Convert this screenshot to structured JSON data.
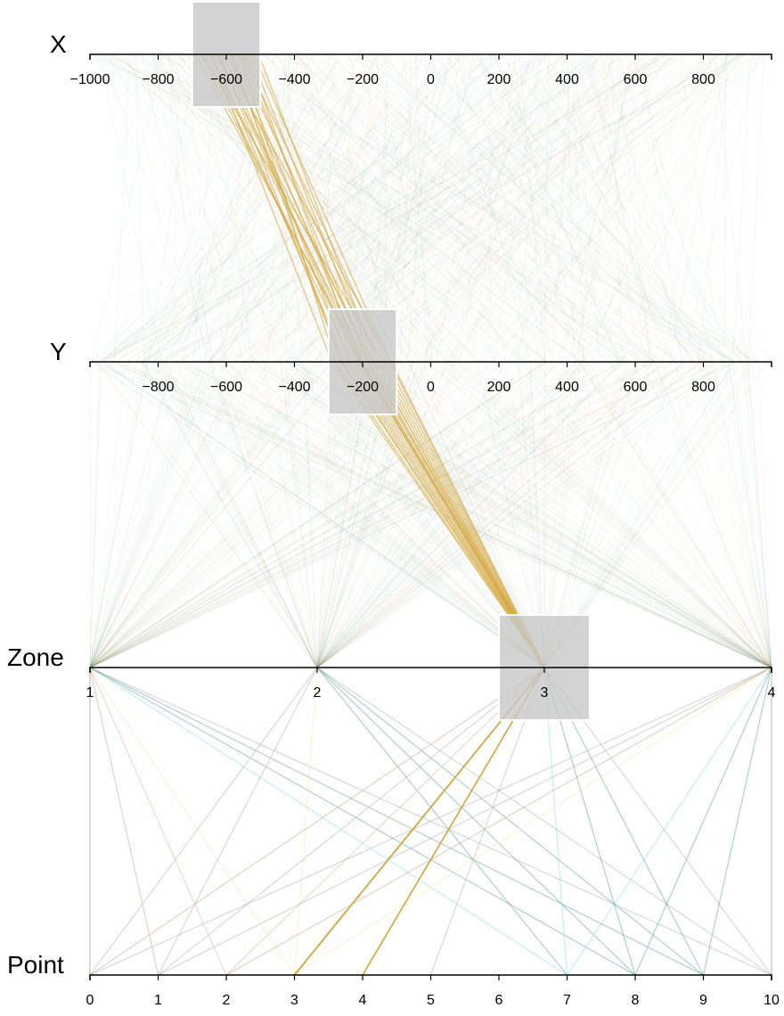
{
  "chart_data": {
    "type": "parallel-coordinates",
    "axes": [
      {
        "id": "x",
        "title": "X",
        "ticks": [
          -1000,
          -800,
          -600,
          -400,
          -200,
          0,
          200,
          400,
          600,
          800
        ],
        "range": [
          -1000,
          1000
        ],
        "brush": [
          -700,
          -500
        ]
      },
      {
        "id": "y",
        "title": "Y",
        "ticks": [
          -800,
          -600,
          -400,
          -200,
          0,
          200,
          400,
          600,
          800
        ],
        "range": [
          -1000,
          1000
        ],
        "brush": [
          -300,
          -100
        ]
      },
      {
        "id": "zone",
        "title": "Zone",
        "ticks": [
          1,
          2,
          3,
          4
        ],
        "range": [
          1,
          4
        ],
        "brush": [
          2.8,
          3.2
        ]
      },
      {
        "id": "point",
        "title": "Point",
        "ticks": [
          0,
          1,
          2,
          3,
          4,
          5,
          6,
          7,
          8,
          9,
          10
        ],
        "range": [
          0,
          10
        ]
      }
    ],
    "palette": [
      "#d4a843",
      "#5a9e91",
      "#e0b0a0",
      "#c8a080",
      "#f3e8a0",
      "#7ae0e0",
      "#b0b0b0"
    ],
    "highlight_color": "#d4a843",
    "highlight_records": [
      [
        -675,
        -210,
        3,
        3
      ],
      [
        -660,
        -230,
        3,
        4
      ],
      [
        -650,
        -190,
        3,
        3
      ],
      [
        -640,
        -250,
        3,
        3
      ],
      [
        -630,
        -170,
        3,
        4
      ],
      [
        -620,
        -260,
        3,
        3
      ],
      [
        -610,
        -220,
        3,
        3
      ],
      [
        -600,
        -180,
        3,
        4
      ],
      [
        -590,
        -240,
        3,
        3
      ],
      [
        -580,
        -200,
        3,
        3
      ],
      [
        -570,
        -150,
        3,
        3
      ],
      [
        -560,
        -280,
        3,
        4
      ],
      [
        -550,
        -130,
        3,
        3
      ],
      [
        -540,
        -210,
        3,
        3
      ],
      [
        -530,
        -170,
        3,
        3
      ],
      [
        -520,
        -120,
        3,
        4
      ],
      [
        -670,
        -140,
        3,
        3
      ],
      [
        -645,
        -290,
        3,
        3
      ],
      [
        -615,
        -115,
        3,
        3
      ],
      [
        -585,
        -265,
        3,
        3
      ],
      [
        -555,
        -185,
        3,
        3
      ],
      [
        -690,
        -200,
        3,
        3
      ],
      [
        -505,
        -160,
        3,
        4
      ],
      [
        -625,
        -205,
        3,
        3
      ]
    ],
    "point_zone_links": [
      [
        0,
        1,
        6
      ],
      [
        1,
        1,
        3
      ],
      [
        2,
        1,
        2
      ],
      [
        3,
        1,
        4
      ],
      [
        7,
        1,
        5
      ],
      [
        8,
        1,
        1
      ],
      [
        9,
        1,
        1
      ],
      [
        10,
        1,
        6
      ],
      [
        0,
        2,
        6
      ],
      [
        1,
        2,
        6
      ],
      [
        3,
        2,
        4
      ],
      [
        7,
        2,
        1
      ],
      [
        8,
        2,
        1
      ],
      [
        9,
        2,
        1
      ],
      [
        10,
        2,
        6
      ],
      [
        0,
        3,
        3
      ],
      [
        1,
        3,
        6
      ],
      [
        2,
        3,
        2
      ],
      [
        3,
        3,
        0
      ],
      [
        4,
        3,
        0
      ],
      [
        5,
        3,
        6
      ],
      [
        7,
        3,
        5
      ],
      [
        8,
        3,
        1
      ],
      [
        9,
        3,
        1
      ],
      [
        10,
        3,
        6
      ],
      [
        0,
        4,
        6
      ],
      [
        1,
        4,
        6
      ],
      [
        2,
        4,
        3
      ],
      [
        3,
        4,
        4
      ],
      [
        7,
        4,
        5
      ],
      [
        8,
        4,
        1
      ],
      [
        9,
        4,
        1
      ],
      [
        10,
        4,
        6
      ]
    ]
  }
}
